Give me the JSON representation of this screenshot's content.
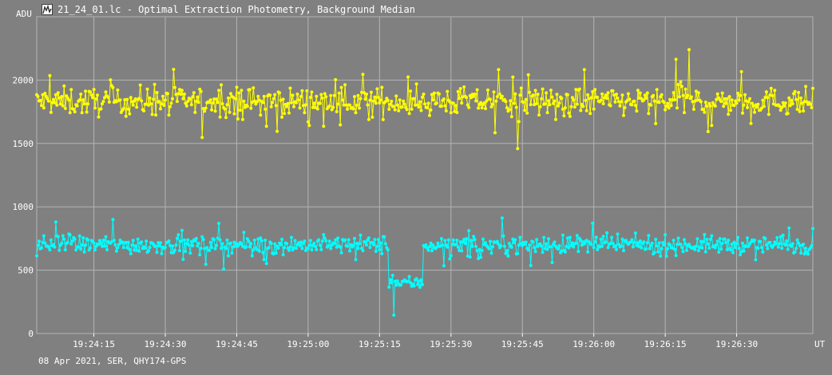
{
  "window": {
    "title": "21_24_01.lc - Optimal Extraction Photometry, Background Median",
    "icon": "light-curve-icon"
  },
  "footer": {
    "info": "08 Apr 2021, SER, QHY174-GPS"
  },
  "colors": {
    "background": "#808080",
    "grid": "#b4b4b4",
    "axis": "#ffffff",
    "series_1": "#ffff00",
    "series_2": "#00ffff"
  },
  "chart_data": {
    "type": "scatter",
    "title": "",
    "xlabel": "UT",
    "ylabel": "ADU",
    "x_unit": "UT",
    "xlim": [
      "19:24:03",
      "19:26:46"
    ],
    "ylim": [
      0,
      2500
    ],
    "grid": true,
    "x_ticks": [
      "19:24:15",
      "19:24:30",
      "19:24:45",
      "19:25:00",
      "19:25:15",
      "19:25:30",
      "19:25:45",
      "19:26:00",
      "19:26:15",
      "19:26:30"
    ],
    "y_ticks": [
      0,
      500,
      1000,
      1500,
      2000
    ],
    "x_range_seconds": [
      3,
      166
    ],
    "dot_every_seconds": 0.25,
    "series": [
      {
        "color": "#ffff00",
        "baseline": 1830,
        "noise": 85,
        "keypoints": [
          {
            "t": "19:24:44",
            "y": 1870
          },
          {
            "t": "19:25:38",
            "y": 1850
          },
          {
            "t": "19:25:44",
            "y": 1460
          },
          {
            "t": "19:26:20",
            "y": 2240
          },
          {
            "t": "19:26:22",
            "y": 1900
          }
        ]
      },
      {
        "color": "#00ffff",
        "baseline": 700,
        "noise": 55,
        "dip": {
          "start": "19:25:17",
          "end": "19:25:24",
          "level": 400,
          "min": 145
        },
        "keypoints": [
          {
            "t": "19:25:18",
            "y": 145
          },
          {
            "t": "19:24:07",
            "y": 880
          },
          {
            "t": "19:24:19",
            "y": 900
          }
        ]
      }
    ]
  }
}
